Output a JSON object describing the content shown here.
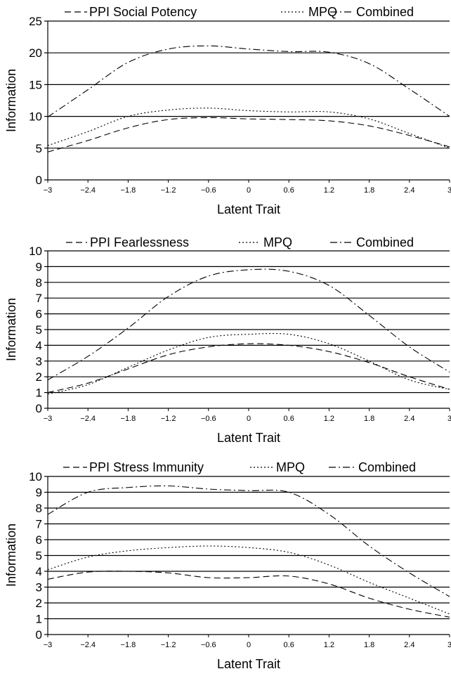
{
  "chart_data": [
    {
      "type": "line",
      "xlabel": "Latent Trait",
      "ylabel": "Information",
      "xlim": [
        -3,
        3
      ],
      "ylim": [
        0,
        25
      ],
      "yticks": [
        0,
        5,
        10,
        15,
        20,
        25
      ],
      "xticks": [
        "-3",
        "-2.4",
        "-1.8",
        "-1.2",
        "-0.6",
        "0",
        "0.6",
        "1.2",
        "1.8",
        "2.4",
        "3"
      ],
      "grid": "horizontal",
      "legend": "top",
      "series": [
        {
          "name": "PPI Social Potency",
          "style": "dashed",
          "x": [
            -3,
            -2.4,
            -1.8,
            -1.2,
            -0.6,
            0,
            0.6,
            1.2,
            1.8,
            2.4,
            3
          ],
          "values": [
            4.4,
            6.2,
            8.2,
            9.5,
            9.8,
            9.6,
            9.5,
            9.3,
            8.5,
            7.0,
            5.2
          ]
        },
        {
          "name": "MPQ",
          "style": "dotted",
          "x": [
            -3,
            -2.4,
            -1.8,
            -1.2,
            -0.6,
            0,
            0.6,
            1.2,
            1.8,
            2.4,
            3
          ],
          "values": [
            5.4,
            7.6,
            10.0,
            11.0,
            11.3,
            10.9,
            10.7,
            10.7,
            9.6,
            7.3,
            5.0
          ]
        },
        {
          "name": "Combined",
          "style": "dashdot",
          "x": [
            -3,
            -2.4,
            -1.8,
            -1.2,
            -0.6,
            0,
            0.6,
            1.2,
            1.8,
            2.4,
            3
          ],
          "values": [
            9.9,
            14.2,
            18.5,
            20.6,
            21.1,
            20.6,
            20.2,
            20.1,
            18.3,
            14.3,
            10.0
          ]
        }
      ]
    },
    {
      "type": "line",
      "xlabel": "Latent Trait",
      "ylabel": "Information",
      "xlim": [
        -3,
        3
      ],
      "ylim": [
        0,
        10
      ],
      "yticks": [
        0,
        1,
        2,
        3,
        4,
        5,
        6,
        7,
        8,
        9,
        10
      ],
      "xticks": [
        "-3",
        "-2.4",
        "-1.8",
        "-1.2",
        "-0.6",
        "0",
        "0.6",
        "1.2",
        "1.8",
        "2.4",
        "3"
      ],
      "grid": "horizontal",
      "legend": "top",
      "series": [
        {
          "name": "PPI Fearlessness",
          "style": "dashed",
          "x": [
            -3,
            -2.4,
            -1.8,
            -1.2,
            -0.6,
            0,
            0.6,
            1.2,
            1.8,
            2.4,
            3
          ],
          "values": [
            1.0,
            1.6,
            2.5,
            3.4,
            3.9,
            4.1,
            4.0,
            3.6,
            2.9,
            2.0,
            1.2
          ]
        },
        {
          "name": "MPQ",
          "style": "dotted",
          "x": [
            -3,
            -2.4,
            -1.8,
            -1.2,
            -0.6,
            0,
            0.6,
            1.2,
            1.8,
            2.4,
            3
          ],
          "values": [
            0.9,
            1.5,
            2.6,
            3.7,
            4.5,
            4.7,
            4.7,
            4.1,
            3.0,
            1.8,
            1.2
          ]
        },
        {
          "name": "Combined",
          "style": "dashdot",
          "x": [
            -3,
            -2.4,
            -1.8,
            -1.2,
            -0.6,
            0,
            0.6,
            1.2,
            1.8,
            2.4,
            3
          ],
          "values": [
            1.8,
            3.3,
            5.1,
            7.1,
            8.4,
            8.8,
            8.7,
            7.8,
            5.9,
            3.9,
            2.3
          ]
        }
      ]
    },
    {
      "type": "line",
      "xlabel": "Latent Trait",
      "ylabel": "Information",
      "xlim": [
        -3,
        3
      ],
      "ylim": [
        0,
        10
      ],
      "yticks": [
        0,
        1,
        2,
        3,
        4,
        5,
        6,
        7,
        8,
        9,
        10
      ],
      "xticks": [
        "-3",
        "-2.4",
        "-1.8",
        "-1.2",
        "-0.6",
        "0",
        "0.6",
        "1.2",
        "1.8",
        "2.4",
        "3"
      ],
      "grid": "horizontal",
      "legend": "top",
      "series": [
        {
          "name": "PPI Stress Immunity",
          "style": "dashed",
          "x": [
            -3,
            -2.4,
            -1.8,
            -1.2,
            -0.6,
            0,
            0.6,
            1.2,
            1.8,
            2.4,
            3
          ],
          "values": [
            3.5,
            3.95,
            4.0,
            3.9,
            3.6,
            3.6,
            3.7,
            3.2,
            2.3,
            1.6,
            1.1
          ]
        },
        {
          "name": "MPQ",
          "style": "dotted",
          "x": [
            -3,
            -2.4,
            -1.8,
            -1.2,
            -0.6,
            0,
            0.6,
            1.2,
            1.8,
            2.4,
            3
          ],
          "values": [
            4.1,
            4.9,
            5.3,
            5.5,
            5.6,
            5.5,
            5.2,
            4.4,
            3.3,
            2.3,
            1.3
          ]
        },
        {
          "name": "Combined",
          "style": "dashdot",
          "x": [
            -3,
            -2.4,
            -1.8,
            -1.2,
            -0.6,
            0,
            0.6,
            1.2,
            1.8,
            2.4,
            3
          ],
          "values": [
            7.6,
            9.0,
            9.3,
            9.4,
            9.2,
            9.1,
            9.0,
            7.6,
            5.6,
            3.9,
            2.4
          ]
        }
      ]
    }
  ]
}
